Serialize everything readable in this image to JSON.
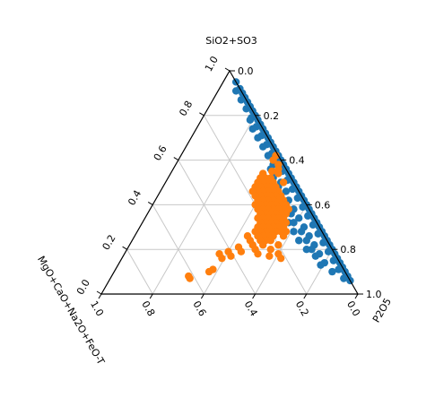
{
  "chart_data": {
    "type": "scatter",
    "subtype": "ternary",
    "axes": {
      "top_label": "SiO2+SO3",
      "right_label": "P2O5",
      "left_label": "MgO+CaO+Na2O+FeO-T",
      "top_ticks": [
        "0.0",
        "0.2",
        "0.4",
        "0.6",
        "0.8",
        "1.0"
      ],
      "right_ticks": [
        "0.0",
        "0.2",
        "0.4",
        "0.6",
        "0.8",
        "1.0"
      ],
      "bottom_ticks": [
        "0.0",
        "0.2",
        "0.4",
        "0.6",
        "0.8",
        "1.0"
      ],
      "range": [
        0,
        1
      ],
      "grid": true,
      "grid_step": 0.2
    },
    "series": [
      {
        "color": "#1f77b4",
        "points": [
          [
            0.95,
            0.05,
            0.0
          ],
          [
            0.92,
            0.08,
            0.0
          ],
          [
            0.9,
            0.1,
            0.0
          ],
          [
            0.88,
            0.12,
            0.0
          ],
          [
            0.86,
            0.14,
            0.0
          ],
          [
            0.84,
            0.16,
            0.0
          ],
          [
            0.82,
            0.18,
            0.0
          ],
          [
            0.8,
            0.2,
            0.0
          ],
          [
            0.78,
            0.22,
            0.0
          ],
          [
            0.76,
            0.24,
            0.0
          ],
          [
            0.74,
            0.26,
            0.0
          ],
          [
            0.72,
            0.28,
            0.0
          ],
          [
            0.7,
            0.3,
            0.0
          ],
          [
            0.68,
            0.32,
            0.0
          ],
          [
            0.66,
            0.34,
            0.0
          ],
          [
            0.64,
            0.36,
            0.0
          ],
          [
            0.62,
            0.38,
            0.0
          ],
          [
            0.6,
            0.4,
            0.0
          ],
          [
            0.58,
            0.42,
            0.0
          ],
          [
            0.56,
            0.44,
            0.0
          ],
          [
            0.54,
            0.46,
            0.0
          ],
          [
            0.52,
            0.48,
            0.0
          ],
          [
            0.5,
            0.5,
            0.0
          ],
          [
            0.48,
            0.52,
            0.0
          ],
          [
            0.46,
            0.54,
            0.0
          ],
          [
            0.44,
            0.56,
            0.0
          ],
          [
            0.42,
            0.58,
            0.0
          ],
          [
            0.4,
            0.6,
            0.0
          ],
          [
            0.38,
            0.62,
            0.0
          ],
          [
            0.36,
            0.64,
            0.0
          ],
          [
            0.34,
            0.66,
            0.0
          ],
          [
            0.32,
            0.68,
            0.0
          ],
          [
            0.3,
            0.7,
            0.0
          ],
          [
            0.28,
            0.72,
            0.0
          ],
          [
            0.26,
            0.74,
            0.0
          ],
          [
            0.24,
            0.76,
            0.0
          ],
          [
            0.22,
            0.78,
            0.0
          ],
          [
            0.2,
            0.8,
            0.0
          ],
          [
            0.18,
            0.82,
            0.0
          ],
          [
            0.16,
            0.84,
            0.0
          ],
          [
            0.14,
            0.86,
            0.0
          ],
          [
            0.12,
            0.88,
            0.0
          ],
          [
            0.1,
            0.9,
            0.0
          ],
          [
            0.08,
            0.92,
            0.0
          ],
          [
            0.06,
            0.94,
            0.0
          ],
          [
            0.91,
            0.07,
            0.02
          ],
          [
            0.87,
            0.11,
            0.02
          ],
          [
            0.83,
            0.15,
            0.02
          ],
          [
            0.79,
            0.19,
            0.02
          ],
          [
            0.75,
            0.23,
            0.02
          ],
          [
            0.71,
            0.27,
            0.02
          ],
          [
            0.67,
            0.31,
            0.02
          ],
          [
            0.63,
            0.35,
            0.02
          ],
          [
            0.59,
            0.39,
            0.02
          ],
          [
            0.55,
            0.43,
            0.02
          ],
          [
            0.51,
            0.47,
            0.02
          ],
          [
            0.47,
            0.51,
            0.02
          ],
          [
            0.43,
            0.55,
            0.02
          ],
          [
            0.39,
            0.59,
            0.02
          ],
          [
            0.35,
            0.63,
            0.02
          ],
          [
            0.31,
            0.67,
            0.02
          ],
          [
            0.27,
            0.71,
            0.02
          ],
          [
            0.23,
            0.75,
            0.02
          ],
          [
            0.19,
            0.79,
            0.02
          ],
          [
            0.15,
            0.83,
            0.02
          ],
          [
            0.11,
            0.87,
            0.02
          ],
          [
            0.07,
            0.91,
            0.02
          ],
          [
            0.78,
            0.19,
            0.03
          ],
          [
            0.74,
            0.22,
            0.04
          ],
          [
            0.7,
            0.26,
            0.04
          ],
          [
            0.66,
            0.3,
            0.04
          ],
          [
            0.62,
            0.34,
            0.04
          ],
          [
            0.58,
            0.38,
            0.04
          ],
          [
            0.54,
            0.41,
            0.05
          ],
          [
            0.5,
            0.45,
            0.05
          ],
          [
            0.46,
            0.49,
            0.05
          ],
          [
            0.42,
            0.52,
            0.06
          ],
          [
            0.38,
            0.56,
            0.06
          ],
          [
            0.34,
            0.6,
            0.06
          ],
          [
            0.3,
            0.64,
            0.06
          ],
          [
            0.26,
            0.68,
            0.06
          ],
          [
            0.22,
            0.72,
            0.06
          ],
          [
            0.18,
            0.76,
            0.06
          ],
          [
            0.14,
            0.8,
            0.06
          ],
          [
            0.1,
            0.85,
            0.05
          ],
          [
            0.56,
            0.38,
            0.06
          ],
          [
            0.52,
            0.41,
            0.07
          ],
          [
            0.48,
            0.45,
            0.07
          ],
          [
            0.44,
            0.48,
            0.08
          ],
          [
            0.4,
            0.52,
            0.08
          ],
          [
            0.36,
            0.56,
            0.08
          ],
          [
            0.32,
            0.59,
            0.09
          ],
          [
            0.28,
            0.64,
            0.08
          ],
          [
            0.24,
            0.68,
            0.08
          ],
          [
            0.2,
            0.72,
            0.08
          ],
          [
            0.17,
            0.75,
            0.08
          ],
          [
            0.13,
            0.79,
            0.08
          ],
          [
            0.4,
            0.5,
            0.1
          ],
          [
            0.36,
            0.54,
            0.1
          ],
          [
            0.32,
            0.57,
            0.11
          ],
          [
            0.28,
            0.61,
            0.11
          ],
          [
            0.24,
            0.65,
            0.11
          ],
          [
            0.2,
            0.7,
            0.1
          ]
        ]
      },
      {
        "color": "#ff7f0e",
        "points": [
          [
            0.62,
            0.37,
            0.01
          ],
          [
            0.58,
            0.4,
            0.02
          ],
          [
            0.6,
            0.37,
            0.03
          ],
          [
            0.56,
            0.41,
            0.03
          ],
          [
            0.54,
            0.42,
            0.04
          ],
          [
            0.5,
            0.46,
            0.04
          ],
          [
            0.55,
            0.39,
            0.06
          ],
          [
            0.52,
            0.4,
            0.08
          ],
          [
            0.5,
            0.42,
            0.08
          ],
          [
            0.48,
            0.44,
            0.08
          ],
          [
            0.46,
            0.46,
            0.08
          ],
          [
            0.44,
            0.48,
            0.08
          ],
          [
            0.42,
            0.5,
            0.08
          ],
          [
            0.4,
            0.52,
            0.08
          ],
          [
            0.38,
            0.54,
            0.08
          ],
          [
            0.54,
            0.36,
            0.1
          ],
          [
            0.52,
            0.38,
            0.1
          ],
          [
            0.5,
            0.4,
            0.1
          ],
          [
            0.48,
            0.42,
            0.1
          ],
          [
            0.46,
            0.44,
            0.1
          ],
          [
            0.44,
            0.46,
            0.1
          ],
          [
            0.42,
            0.48,
            0.1
          ],
          [
            0.4,
            0.5,
            0.1
          ],
          [
            0.38,
            0.52,
            0.1
          ],
          [
            0.36,
            0.54,
            0.1
          ],
          [
            0.52,
            0.36,
            0.12
          ],
          [
            0.5,
            0.38,
            0.12
          ],
          [
            0.48,
            0.4,
            0.12
          ],
          [
            0.46,
            0.42,
            0.12
          ],
          [
            0.44,
            0.44,
            0.12
          ],
          [
            0.42,
            0.46,
            0.12
          ],
          [
            0.4,
            0.48,
            0.12
          ],
          [
            0.38,
            0.5,
            0.12
          ],
          [
            0.36,
            0.52,
            0.12
          ],
          [
            0.34,
            0.54,
            0.12
          ],
          [
            0.32,
            0.56,
            0.12
          ],
          [
            0.5,
            0.36,
            0.14
          ],
          [
            0.48,
            0.38,
            0.14
          ],
          [
            0.46,
            0.4,
            0.14
          ],
          [
            0.44,
            0.42,
            0.14
          ],
          [
            0.42,
            0.44,
            0.14
          ],
          [
            0.4,
            0.46,
            0.14
          ],
          [
            0.38,
            0.48,
            0.14
          ],
          [
            0.36,
            0.5,
            0.14
          ],
          [
            0.34,
            0.52,
            0.14
          ],
          [
            0.32,
            0.54,
            0.14
          ],
          [
            0.3,
            0.56,
            0.14
          ],
          [
            0.28,
            0.58,
            0.14
          ],
          [
            0.48,
            0.36,
            0.16
          ],
          [
            0.46,
            0.38,
            0.16
          ],
          [
            0.44,
            0.4,
            0.16
          ],
          [
            0.42,
            0.42,
            0.16
          ],
          [
            0.4,
            0.44,
            0.16
          ],
          [
            0.38,
            0.46,
            0.16
          ],
          [
            0.36,
            0.48,
            0.16
          ],
          [
            0.34,
            0.5,
            0.16
          ],
          [
            0.32,
            0.52,
            0.16
          ],
          [
            0.3,
            0.54,
            0.16
          ],
          [
            0.28,
            0.56,
            0.16
          ],
          [
            0.26,
            0.58,
            0.16
          ],
          [
            0.46,
            0.36,
            0.18
          ],
          [
            0.44,
            0.38,
            0.18
          ],
          [
            0.42,
            0.4,
            0.18
          ],
          [
            0.4,
            0.42,
            0.18
          ],
          [
            0.38,
            0.44,
            0.18
          ],
          [
            0.36,
            0.46,
            0.18
          ],
          [
            0.34,
            0.48,
            0.18
          ],
          [
            0.32,
            0.5,
            0.18
          ],
          [
            0.3,
            0.52,
            0.18
          ],
          [
            0.28,
            0.54,
            0.18
          ],
          [
            0.4,
            0.4,
            0.2
          ],
          [
            0.38,
            0.42,
            0.2
          ],
          [
            0.36,
            0.44,
            0.2
          ],
          [
            0.34,
            0.46,
            0.2
          ],
          [
            0.32,
            0.48,
            0.2
          ],
          [
            0.3,
            0.5,
            0.2
          ],
          [
            0.28,
            0.52,
            0.2
          ],
          [
            0.26,
            0.54,
            0.2
          ],
          [
            0.34,
            0.44,
            0.22
          ],
          [
            0.32,
            0.46,
            0.22
          ],
          [
            0.3,
            0.48,
            0.22
          ],
          [
            0.28,
            0.5,
            0.22
          ],
          [
            0.26,
            0.52,
            0.22
          ],
          [
            0.24,
            0.54,
            0.22
          ],
          [
            0.3,
            0.46,
            0.24
          ],
          [
            0.28,
            0.48,
            0.24
          ],
          [
            0.26,
            0.5,
            0.24
          ],
          [
            0.24,
            0.52,
            0.24
          ],
          [
            0.28,
            0.46,
            0.26
          ],
          [
            0.26,
            0.48,
            0.26
          ],
          [
            0.24,
            0.5,
            0.26
          ],
          [
            0.22,
            0.52,
            0.26
          ],
          [
            0.22,
            0.58,
            0.2
          ],
          [
            0.18,
            0.6,
            0.22
          ],
          [
            0.2,
            0.56,
            0.24
          ],
          [
            0.17,
            0.57,
            0.26
          ],
          [
            0.16,
            0.62,
            0.22
          ],
          [
            0.26,
            0.44,
            0.3
          ],
          [
            0.24,
            0.46,
            0.3
          ],
          [
            0.22,
            0.48,
            0.3
          ],
          [
            0.2,
            0.5,
            0.3
          ],
          [
            0.18,
            0.52,
            0.3
          ],
          [
            0.21,
            0.43,
            0.36
          ],
          [
            0.19,
            0.45,
            0.36
          ],
          [
            0.19,
            0.4,
            0.41
          ],
          [
            0.17,
            0.42,
            0.41
          ],
          [
            0.18,
            0.37,
            0.45
          ],
          [
            0.16,
            0.39,
            0.45
          ],
          [
            0.11,
            0.38,
            0.51
          ],
          [
            0.1,
            0.37,
            0.53
          ],
          [
            0.08,
            0.3,
            0.62
          ],
          [
            0.07,
            0.31,
            0.62
          ]
        ]
      }
    ]
  }
}
